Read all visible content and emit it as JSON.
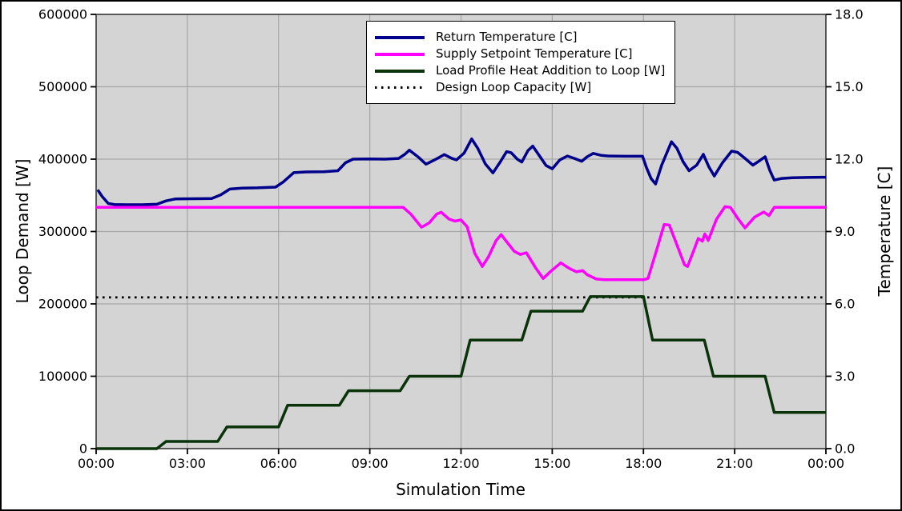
{
  "figure": {
    "background": "#ffffff",
    "plot_background": "#d4d4d4",
    "grid_color": "#a6a6a6",
    "spine_color": "#3a3a3a",
    "outer_border_color": "#000000",
    "text_color": "#000000"
  },
  "chart_data": {
    "type": "line",
    "xlabel": "Simulation Time",
    "ylabel_left": "Loop Demand [W]",
    "ylabel_right": "Temperature [C]",
    "x_range_hours": [
      0,
      24
    ],
    "ylim_left": [
      0,
      600000
    ],
    "ylim_right": [
      0.0,
      18.0
    ],
    "grid": true,
    "legend_position": "upper center",
    "x_ticks": [
      {
        "hour": 0,
        "label": "00:00"
      },
      {
        "hour": 3,
        "label": "03:00"
      },
      {
        "hour": 6,
        "label": "06:00"
      },
      {
        "hour": 9,
        "label": "09:00"
      },
      {
        "hour": 12,
        "label": "12:00"
      },
      {
        "hour": 15,
        "label": "15:00"
      },
      {
        "hour": 18,
        "label": "18:00"
      },
      {
        "hour": 21,
        "label": "21:00"
      },
      {
        "hour": 24,
        "label": "00:00"
      }
    ],
    "y_ticks_left": [
      {
        "value": 0,
        "label": "0"
      },
      {
        "value": 100000,
        "label": "100000"
      },
      {
        "value": 200000,
        "label": "200000"
      },
      {
        "value": 300000,
        "label": "300000"
      },
      {
        "value": 400000,
        "label": "400000"
      },
      {
        "value": 500000,
        "label": "500000"
      },
      {
        "value": 600000,
        "label": "600000"
      }
    ],
    "y_ticks_right": [
      {
        "value": 0,
        "label": "0.0"
      },
      {
        "value": 3,
        "label": "3.0"
      },
      {
        "value": 6,
        "label": "6.0"
      },
      {
        "value": 9,
        "label": "9.0"
      },
      {
        "value": 12,
        "label": "12.0"
      },
      {
        "value": 15,
        "label": "15.0"
      },
      {
        "value": 18,
        "label": "18.0"
      }
    ],
    "series": [
      {
        "name": "return-temperature",
        "label": "Return Temperature [C]",
        "color": "#00008b",
        "axis": "right",
        "style": "solid",
        "points": [
          [
            0.05,
            10.73
          ],
          [
            0.2,
            10.45
          ],
          [
            0.4,
            10.16
          ],
          [
            0.6,
            10.12
          ],
          [
            1.0,
            10.11
          ],
          [
            1.5,
            10.11
          ],
          [
            2.0,
            10.13
          ],
          [
            2.3,
            10.27
          ],
          [
            2.6,
            10.35
          ],
          [
            3.2,
            10.36
          ],
          [
            3.8,
            10.37
          ],
          [
            4.1,
            10.52
          ],
          [
            4.4,
            10.76
          ],
          [
            4.8,
            10.8
          ],
          [
            5.3,
            10.81
          ],
          [
            5.9,
            10.84
          ],
          [
            6.15,
            11.05
          ],
          [
            6.5,
            11.44
          ],
          [
            6.9,
            11.47
          ],
          [
            7.5,
            11.48
          ],
          [
            7.95,
            11.52
          ],
          [
            8.2,
            11.85
          ],
          [
            8.45,
            12.0
          ],
          [
            9.0,
            12.01
          ],
          [
            9.5,
            12.0
          ],
          [
            9.95,
            12.03
          ],
          [
            10.15,
            12.2
          ],
          [
            10.3,
            12.37
          ],
          [
            10.6,
            12.08
          ],
          [
            10.85,
            11.79
          ],
          [
            11.15,
            11.98
          ],
          [
            11.45,
            12.19
          ],
          [
            11.7,
            12.03
          ],
          [
            11.85,
            11.97
          ],
          [
            12.1,
            12.25
          ],
          [
            12.35,
            12.84
          ],
          [
            12.55,
            12.45
          ],
          [
            12.8,
            11.8
          ],
          [
            13.05,
            11.43
          ],
          [
            13.3,
            11.9
          ],
          [
            13.5,
            12.31
          ],
          [
            13.65,
            12.27
          ],
          [
            13.85,
            12.0
          ],
          [
            14.0,
            11.88
          ],
          [
            14.2,
            12.35
          ],
          [
            14.36,
            12.54
          ],
          [
            14.6,
            12.1
          ],
          [
            14.8,
            11.73
          ],
          [
            15.0,
            11.6
          ],
          [
            15.25,
            11.97
          ],
          [
            15.5,
            12.13
          ],
          [
            15.75,
            12.02
          ],
          [
            15.97,
            11.91
          ],
          [
            16.15,
            12.1
          ],
          [
            16.35,
            12.24
          ],
          [
            16.6,
            12.16
          ],
          [
            16.85,
            12.13
          ],
          [
            17.4,
            12.12
          ],
          [
            17.97,
            12.12
          ],
          [
            18.1,
            11.65
          ],
          [
            18.25,
            11.2
          ],
          [
            18.4,
            10.97
          ],
          [
            18.6,
            11.75
          ],
          [
            18.92,
            12.72
          ],
          [
            19.1,
            12.45
          ],
          [
            19.3,
            11.9
          ],
          [
            19.5,
            11.52
          ],
          [
            19.75,
            11.75
          ],
          [
            19.97,
            12.2
          ],
          [
            20.15,
            11.68
          ],
          [
            20.33,
            11.3
          ],
          [
            20.6,
            11.85
          ],
          [
            20.9,
            12.33
          ],
          [
            21.1,
            12.28
          ],
          [
            21.35,
            12.02
          ],
          [
            21.6,
            11.75
          ],
          [
            21.8,
            11.92
          ],
          [
            22.0,
            12.1
          ],
          [
            22.15,
            11.55
          ],
          [
            22.3,
            11.13
          ],
          [
            22.55,
            11.2
          ],
          [
            22.9,
            11.23
          ],
          [
            23.4,
            11.24
          ],
          [
            24.0,
            11.25
          ]
        ]
      },
      {
        "name": "supply-setpoint-temperature",
        "label": "Supply Setpoint Temperature [C]",
        "color": "#ff00ff",
        "axis": "right",
        "style": "solid",
        "points": [
          [
            0.0,
            10.0
          ],
          [
            3.0,
            10.0
          ],
          [
            6.0,
            10.0
          ],
          [
            9.0,
            10.0
          ],
          [
            10.1,
            10.0
          ],
          [
            10.35,
            9.72
          ],
          [
            10.7,
            9.18
          ],
          [
            10.95,
            9.35
          ],
          [
            11.2,
            9.72
          ],
          [
            11.35,
            9.8
          ],
          [
            11.6,
            9.52
          ],
          [
            11.8,
            9.43
          ],
          [
            12.0,
            9.48
          ],
          [
            12.2,
            9.2
          ],
          [
            12.45,
            8.1
          ],
          [
            12.7,
            7.55
          ],
          [
            12.9,
            7.95
          ],
          [
            13.15,
            8.62
          ],
          [
            13.32,
            8.87
          ],
          [
            13.55,
            8.5
          ],
          [
            13.75,
            8.18
          ],
          [
            13.95,
            8.05
          ],
          [
            14.15,
            8.12
          ],
          [
            14.45,
            7.5
          ],
          [
            14.7,
            7.05
          ],
          [
            14.95,
            7.35
          ],
          [
            15.28,
            7.7
          ],
          [
            15.55,
            7.48
          ],
          [
            15.8,
            7.33
          ],
          [
            16.0,
            7.38
          ],
          [
            16.15,
            7.21
          ],
          [
            16.45,
            7.03
          ],
          [
            16.7,
            7.0
          ],
          [
            17.3,
            7.0
          ],
          [
            18.0,
            7.0
          ],
          [
            18.15,
            7.05
          ],
          [
            18.45,
            8.3
          ],
          [
            18.68,
            9.29
          ],
          [
            18.85,
            9.27
          ],
          [
            19.1,
            8.45
          ],
          [
            19.35,
            7.62
          ],
          [
            19.45,
            7.55
          ],
          [
            19.65,
            8.2
          ],
          [
            19.8,
            8.71
          ],
          [
            19.94,
            8.6
          ],
          [
            20.02,
            8.9
          ],
          [
            20.13,
            8.63
          ],
          [
            20.4,
            9.5
          ],
          [
            20.68,
            10.03
          ],
          [
            20.86,
            10.0
          ],
          [
            21.1,
            9.55
          ],
          [
            21.34,
            9.15
          ],
          [
            21.65,
            9.59
          ],
          [
            21.95,
            9.81
          ],
          [
            22.13,
            9.66
          ],
          [
            22.3,
            10.0
          ],
          [
            23.0,
            10.0
          ],
          [
            24.0,
            10.0
          ]
        ]
      },
      {
        "name": "load-profile-heat-addition",
        "label": "Load Profile Heat Addition to Loop [W]",
        "color": "#0a330a",
        "axis": "left",
        "style": "solid",
        "points": [
          [
            0,
            0
          ],
          [
            2.0,
            0
          ],
          [
            2.3,
            10000
          ],
          [
            4.0,
            10000
          ],
          [
            4.3,
            30000
          ],
          [
            6.0,
            30000
          ],
          [
            6.3,
            60000
          ],
          [
            8.0,
            60000
          ],
          [
            8.3,
            80000
          ],
          [
            10.0,
            80000
          ],
          [
            10.3,
            100000
          ],
          [
            12.0,
            100000
          ],
          [
            12.3,
            150000
          ],
          [
            14.0,
            150000
          ],
          [
            14.3,
            190000
          ],
          [
            16.0,
            190000
          ],
          [
            16.25,
            210000
          ],
          [
            18.0,
            210000
          ],
          [
            18.3,
            150000
          ],
          [
            20.0,
            150000
          ],
          [
            20.3,
            100000
          ],
          [
            22.0,
            100000
          ],
          [
            22.3,
            50000
          ],
          [
            24.0,
            50000
          ]
        ]
      },
      {
        "name": "design-loop-capacity",
        "label": "Design Loop Capacity [W]",
        "color": "#000000",
        "axis": "left",
        "style": "dotted",
        "points": [
          [
            0,
            209000
          ],
          [
            24,
            209000
          ]
        ]
      }
    ]
  }
}
